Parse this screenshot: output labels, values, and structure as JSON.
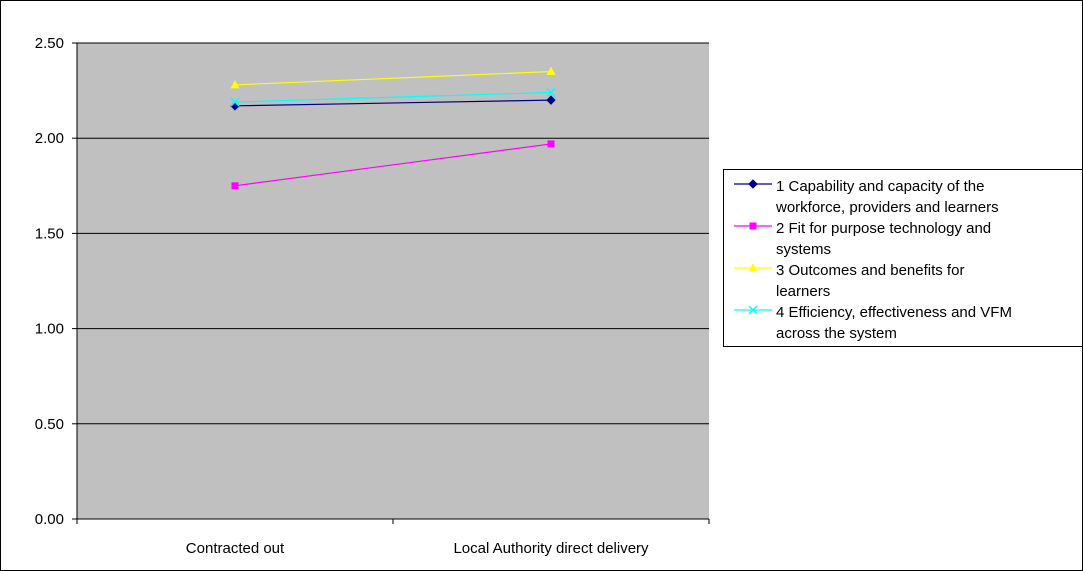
{
  "chart_data": {
    "type": "line",
    "title": "",
    "xlabel": "",
    "ylabel": "",
    "categories": [
      "Contracted out",
      "Local Authority direct delivery"
    ],
    "ylim": [
      0,
      2.5
    ],
    "yticks": [
      "0.00",
      "0.50",
      "1.00",
      "1.50",
      "2.00",
      "2.50"
    ],
    "grid": true,
    "legend_position": "right",
    "plot_background": "#c0c0c0",
    "series": [
      {
        "name": "1 Capability and capacity of the workforce, providers and learners",
        "label_lines": [
          "1 Capability and capacity of the",
          "workforce, providers and learners"
        ],
        "values": [
          2.17,
          2.2
        ],
        "color": "#000080",
        "marker": "diamond"
      },
      {
        "name": "2 Fit for purpose technology and systems",
        "label_lines": [
          "2 Fit for purpose technology and",
          "systems"
        ],
        "values": [
          1.75,
          1.97
        ],
        "color": "#ff00ff",
        "marker": "square"
      },
      {
        "name": "3 Outcomes and benefits for learners",
        "label_lines": [
          "3 Outcomes and benefits for",
          "learners"
        ],
        "values": [
          2.28,
          2.35
        ],
        "color": "#ffff00",
        "marker": "triangle"
      },
      {
        "name": "4 Efficiency, effectiveness and VFM across the system",
        "label_lines": [
          "4 Efficiency, effectiveness and VFM",
          "across the system"
        ],
        "values": [
          2.19,
          2.24
        ],
        "color": "#00ffff",
        "marker": "x"
      }
    ]
  }
}
